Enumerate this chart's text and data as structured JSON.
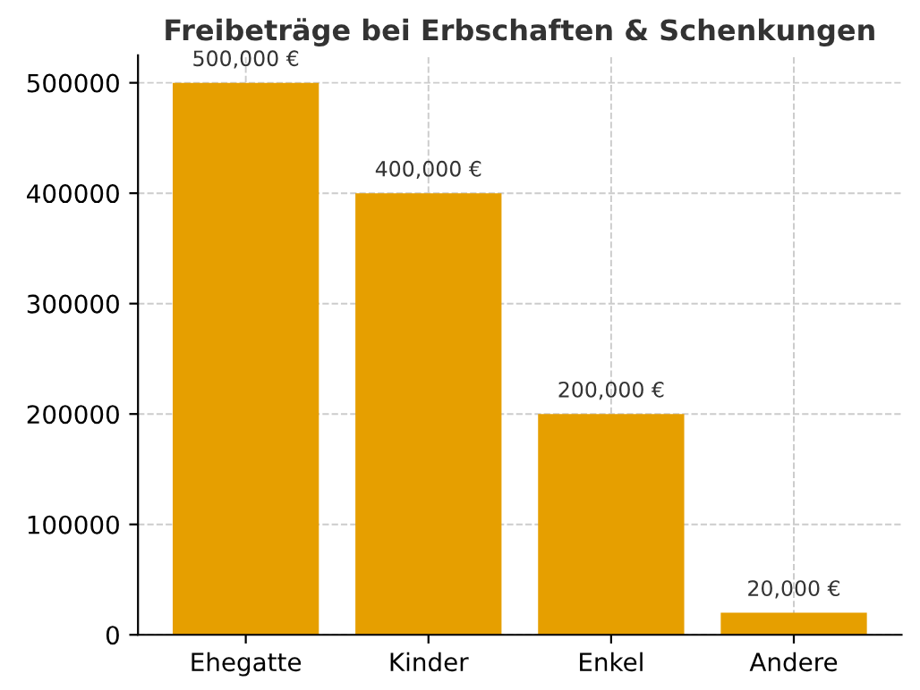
{
  "chart_data": {
    "type": "bar",
    "title": "Freibeträge bei Erbschaften & Schenkungen",
    "categories": [
      "Ehegatte",
      "Kinder",
      "Enkel",
      "Andere"
    ],
    "values": [
      500000,
      400000,
      200000,
      20000
    ],
    "value_labels": [
      "500,000 €",
      "400,000 €",
      "200,000 €",
      "20,000 €"
    ],
    "color": "#e69f00",
    "ylim": [
      0,
      525000
    ],
    "yticks": [
      0,
      100000,
      200000,
      300000,
      400000,
      500000
    ],
    "grid": true
  }
}
